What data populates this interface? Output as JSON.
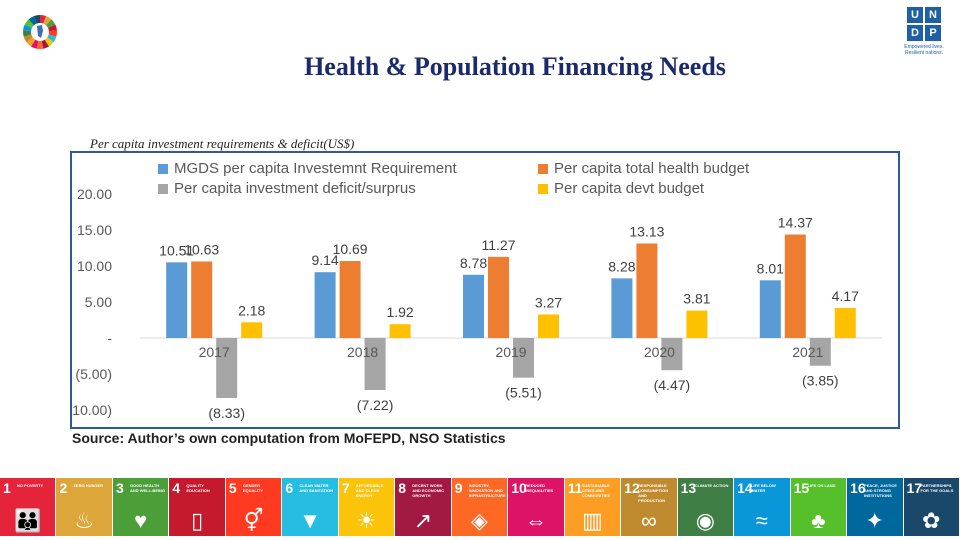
{
  "slide": {
    "title": "Health & Population Financing Needs",
    "subtitle": "Per capita investment requirements & deficit(US$)",
    "source_label": "Source:",
    "source_text": "Author’s own computation from MoFEPD, NSO Statistics",
    "undp_letters": [
      "U",
      "N",
      "D",
      "P"
    ],
    "undp_tagline": "Empowered lives. Resilient nations."
  },
  "sdg_tiles": [
    {
      "num": "1",
      "text": "NO POVERTY",
      "color": "#e5243b",
      "icon": "people-icon",
      "glyph": "👪"
    },
    {
      "num": "2",
      "text": "ZERO HUNGER",
      "color": "#dda63a",
      "icon": "bowl-icon",
      "glyph": "♨"
    },
    {
      "num": "3",
      "text": "GOOD HEALTH AND WELL-BEING",
      "color": "#4c9f38",
      "icon": "heartbeat-icon",
      "glyph": "♥"
    },
    {
      "num": "4",
      "text": "QUALITY EDUCATION",
      "color": "#c5192d",
      "icon": "book-icon",
      "glyph": "▯"
    },
    {
      "num": "5",
      "text": "GENDER EQUALITY",
      "color": "#ff3a21",
      "icon": "gender-icon",
      "glyph": "⚥"
    },
    {
      "num": "6",
      "text": "CLEAN WATER AND SANITATION",
      "color": "#26bde2",
      "icon": "water-icon",
      "glyph": "▼"
    },
    {
      "num": "7",
      "text": "AFFORDABLE AND CLEAN ENERGY",
      "color": "#fcc30b",
      "icon": "sun-icon",
      "glyph": "☀"
    },
    {
      "num": "8",
      "text": "DECENT WORK AND ECONOMIC GROWTH",
      "color": "#a21942",
      "icon": "growth-icon",
      "glyph": "↗"
    },
    {
      "num": "9",
      "text": "INDUSTRY, INNOVATION AND INFRASTRUCTURE",
      "color": "#fd6925",
      "icon": "cubes-icon",
      "glyph": "◈"
    },
    {
      "num": "10",
      "text": "REDUCED INEQUALITIES",
      "color": "#dd1367",
      "icon": "equality-icon",
      "glyph": "⇔"
    },
    {
      "num": "11",
      "text": "SUSTAINABLE CITIES AND COMMUNITIES",
      "color": "#fd9d24",
      "icon": "city-icon",
      "glyph": "▥"
    },
    {
      "num": "12",
      "text": "RESPONSIBLE CONSUMPTION AND PRODUCTION",
      "color": "#bf8b2e",
      "icon": "infinity-icon",
      "glyph": "∞"
    },
    {
      "num": "13",
      "text": "CLIMATE ACTION",
      "color": "#3f7e44",
      "icon": "eye-icon",
      "glyph": "◉"
    },
    {
      "num": "14",
      "text": "LIFE BELOW WATER",
      "color": "#0a97d9",
      "icon": "fish-icon",
      "glyph": "≈"
    },
    {
      "num": "15",
      "text": "LIFE ON LAND",
      "color": "#56c02b",
      "icon": "tree-icon",
      "glyph": "♣"
    },
    {
      "num": "16",
      "text": "PEACE, JUSTICE AND STRONG INSTITUTIONS",
      "color": "#00689d",
      "icon": "dove-icon",
      "glyph": "✦"
    },
    {
      "num": "17",
      "text": "PARTNERSHIPS FOR THE GOALS",
      "color": "#19486a",
      "icon": "rings-icon",
      "glyph": "✿"
    }
  ],
  "chart_data": {
    "type": "bar",
    "categories": [
      "2017",
      "2018",
      "2019",
      "2020",
      "2021"
    ],
    "series": [
      {
        "name": "MGDS per capita Investemnt Requirement",
        "color": "#5b9bd5",
        "values": [
          10.51,
          9.14,
          8.78,
          8.28,
          8.01
        ],
        "labels": [
          "10.51",
          "9.14",
          "8.78",
          "8.28",
          "8.01"
        ]
      },
      {
        "name": "Per capita total health budget",
        "color": "#ed7d31",
        "values": [
          10.63,
          10.69,
          11.27,
          13.13,
          14.37
        ],
        "labels": [
          "10.63",
          "10.69",
          "11.27",
          "13.13",
          "14.37"
        ]
      },
      {
        "name": "Per capita investment deficit/surprus",
        "color": "#a5a5a5",
        "values": [
          -8.33,
          -7.22,
          -5.51,
          -4.47,
          -3.85
        ],
        "labels": [
          "(8.33)",
          "(7.22)",
          "(5.51)",
          "(4.47)",
          "(3.85)"
        ]
      },
      {
        "name": "Per capita devt budget",
        "color": "#ffc000",
        "values": [
          2.18,
          1.92,
          3.27,
          3.81,
          4.17
        ],
        "labels": [
          "2.18",
          "1.92",
          "3.27",
          "3.81",
          "4.17"
        ]
      }
    ],
    "yticks": [
      {
        "value": 20,
        "label": "20.00"
      },
      {
        "value": 15,
        "label": "15.00"
      },
      {
        "value": 10,
        "label": "10.00"
      },
      {
        "value": 5,
        "label": "5.00"
      },
      {
        "value": 0,
        "label": "-"
      },
      {
        "value": -5,
        "label": "(5.00)"
      },
      {
        "value": -10,
        "label": "(10.00)"
      }
    ],
    "ylim": [
      -10,
      20
    ],
    "grid": false,
    "legend": "top"
  }
}
